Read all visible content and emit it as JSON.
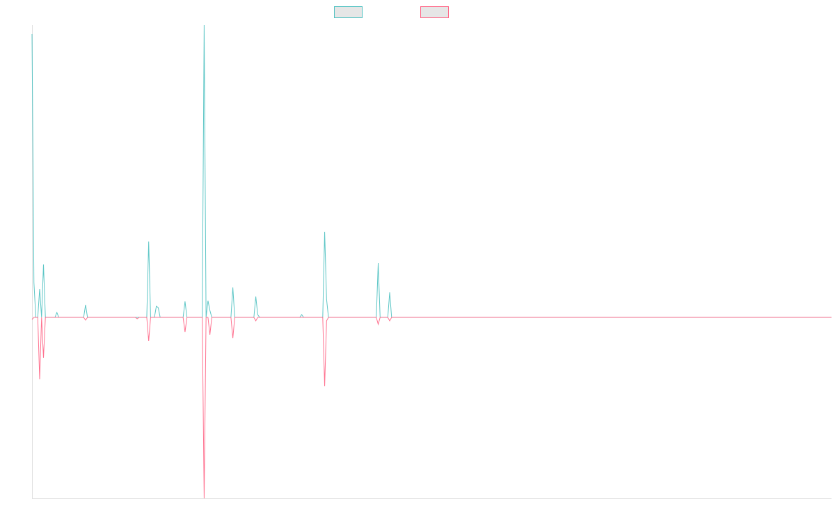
{
  "chart_data": {
    "type": "line",
    "title": "",
    "xlabel": "",
    "ylabel": "",
    "point_count": 419,
    "ylim": [
      -260,
      420
    ],
    "grid": false,
    "legend_placement": "top-center",
    "series": [
      {
        "name": "",
        "color": "#4bc0c0",
        "nonzero_points": [
          [
            0,
            407
          ],
          [
            1,
            50
          ],
          [
            4,
            41
          ],
          [
            6,
            76
          ],
          [
            13,
            7
          ],
          [
            28,
            18
          ],
          [
            61,
            109
          ],
          [
            65,
            16
          ],
          [
            66,
            14
          ],
          [
            80,
            23
          ],
          [
            90,
            420
          ],
          [
            92,
            24
          ],
          [
            93,
            10
          ],
          [
            105,
            43
          ],
          [
            117,
            30
          ],
          [
            118,
            4
          ],
          [
            141,
            4
          ],
          [
            153,
            123
          ],
          [
            154,
            26
          ],
          [
            181,
            78
          ],
          [
            187,
            36
          ]
        ]
      },
      {
        "name": "",
        "color": "#ff6384",
        "nonzero_points": [
          [
            0,
            -3
          ],
          [
            4,
            -89
          ],
          [
            6,
            -58
          ],
          [
            28,
            -4
          ],
          [
            55,
            -2
          ],
          [
            61,
            -34
          ],
          [
            80,
            -21
          ],
          [
            90,
            -260
          ],
          [
            93,
            -25
          ],
          [
            105,
            -30
          ],
          [
            117,
            -5
          ],
          [
            153,
            -99
          ],
          [
            154,
            -5
          ],
          [
            181,
            -10
          ],
          [
            187,
            -5
          ]
        ]
      }
    ]
  }
}
